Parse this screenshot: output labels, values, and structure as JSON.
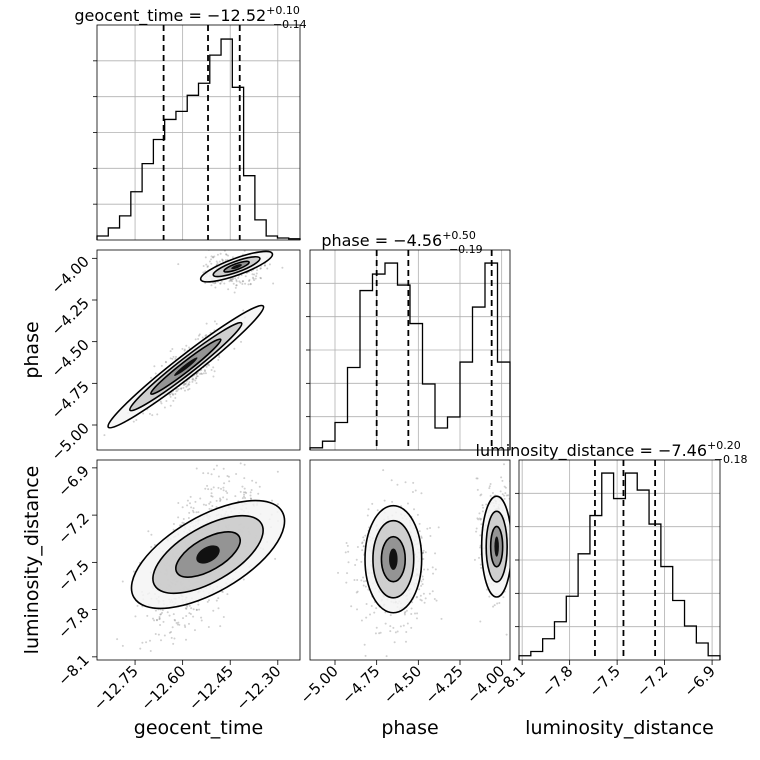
{
  "chart_data": {
    "type": "corner",
    "parameters": [
      "geocent_time",
      "phase",
      "luminosity_distance"
    ],
    "titles": [
      {
        "param": "geocent_time",
        "median": "−12.52",
        "plus": "+0.10",
        "minus": "−0.14"
      },
      {
        "param": "phase",
        "median": "−4.56",
        "plus": "+0.50",
        "minus": "−0.19"
      },
      {
        "param": "luminosity_distance",
        "median": "−7.46",
        "plus": "+0.20",
        "minus": "−0.18"
      }
    ],
    "ranges": {
      "geocent_time": [
        -12.87,
        -12.23
      ],
      "phase": [
        -5.15,
        -3.95
      ],
      "luminosity_distance": [
        -8.12,
        -6.85
      ]
    },
    "ticks": {
      "geocent_time": {
        "values": [
          -12.75,
          -12.6,
          -12.45,
          -12.3
        ],
        "labels": [
          "−12.75",
          "−12.60",
          "−12.45",
          "−12.30"
        ]
      },
      "phase": {
        "values": [
          -5.0,
          -4.75,
          -4.5,
          -4.25,
          -4.0
        ],
        "labels": [
          "−5.00",
          "−4.75",
          "−4.50",
          "−4.25",
          "−4.00"
        ]
      },
      "luminosity_distance": {
        "values": [
          -8.1,
          -7.8,
          -7.5,
          -7.2,
          -6.9
        ],
        "labels": [
          "−8.1",
          "−7.8",
          "−7.5",
          "−7.2",
          "−6.9"
        ]
      }
    },
    "quantile_lines": {
      "geocent_time": [
        -12.66,
        -12.52,
        -12.42
      ],
      "phase": [
        -4.75,
        -4.56,
        -4.06
      ],
      "luminosity_distance": [
        -7.64,
        -7.46,
        -7.26
      ]
    },
    "histograms": {
      "geocent_time": [
        1,
        3,
        6,
        12,
        19,
        25,
        30,
        32,
        36,
        39,
        46,
        50,
        38,
        16,
        5,
        1,
        0.5,
        0.3
      ],
      "phase": [
        0.4,
        1.6,
        5,
        15,
        29,
        32,
        34,
        30,
        23,
        12,
        4,
        6,
        16,
        26,
        34,
        16
      ],
      "luminosity_distance": [
        1,
        2,
        5,
        9,
        15,
        25,
        34,
        44,
        38,
        44,
        40,
        32,
        22,
        14,
        8,
        4,
        1
      ]
    },
    "grid": true,
    "legend": "none"
  }
}
